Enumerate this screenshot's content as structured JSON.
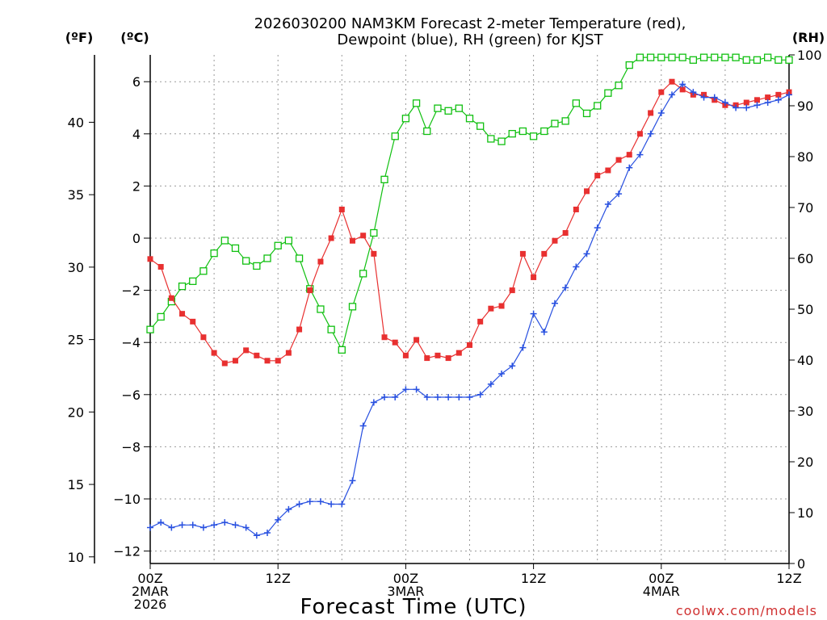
{
  "chart_data": {
    "type": "line",
    "title": [
      "2026030200 NAM3KM Forecast 2-meter Temperature (red),",
      "Dewpoint (blue), RH (green) for KJST"
    ],
    "xlabel": "Forecast Time (UTC)",
    "watermark": "coolwx.com/models",
    "left_unit_f": "(ºF)",
    "left_unit_c": "(ºC)",
    "right_unit": "(RH)",
    "grid": true,
    "x_range_hours": [
      0,
      60
    ],
    "x_ticks": [
      {
        "hour": 0,
        "lines": [
          "00Z",
          "2MAR",
          "2026"
        ]
      },
      {
        "hour": 12,
        "lines": [
          "12Z"
        ]
      },
      {
        "hour": 24,
        "lines": [
          "00Z",
          "3MAR"
        ]
      },
      {
        "hour": 36,
        "lines": [
          "12Z"
        ]
      },
      {
        "hour": 48,
        "lines": [
          "00Z",
          "4MAR"
        ]
      },
      {
        "hour": 60,
        "lines": [
          "12Z"
        ]
      }
    ],
    "ylim_c": [
      -12.5,
      7
    ],
    "y_ticks_c": [
      "6",
      "4",
      "2",
      "0",
      "−2",
      "−4",
      "−6",
      "−8",
      "−10",
      "−12"
    ],
    "y_ticks_f": [
      "10",
      "15",
      "20",
      "25",
      "30",
      "35",
      "40"
    ],
    "ylim_rh": [
      0,
      100
    ],
    "y_ticks_rh": [
      "0",
      "10",
      "20",
      "30",
      "40",
      "50",
      "60",
      "70",
      "80",
      "90",
      "100"
    ],
    "hours": [
      0,
      1,
      2,
      3,
      4,
      5,
      6,
      7,
      8,
      9,
      10,
      11,
      12,
      13,
      14,
      15,
      16,
      17,
      18,
      19,
      20,
      21,
      22,
      23,
      24,
      25,
      26,
      27,
      28,
      29,
      30,
      31,
      32,
      33,
      34,
      35,
      36,
      37,
      38,
      39,
      40,
      41,
      42,
      43,
      44,
      45,
      46,
      47,
      48,
      49,
      50,
      51,
      52,
      53,
      54,
      55,
      56,
      57,
      58,
      59,
      60
    ],
    "series": [
      {
        "name": "Temperature",
        "unit": "C",
        "color": "#e83030",
        "marker": "filled-square",
        "values": [
          -0.8,
          -1.1,
          -2.3,
          -2.9,
          -3.2,
          -3.8,
          -4.4,
          -4.8,
          -4.7,
          -4.3,
          -4.5,
          -4.7,
          -4.7,
          -4.4,
          -3.5,
          -2.0,
          -0.9,
          0.0,
          1.1,
          -0.1,
          0.1,
          -0.6,
          -3.8,
          -4.0,
          -4.5,
          -3.9,
          -4.6,
          -4.5,
          -4.6,
          -4.4,
          -4.1,
          -3.2,
          -2.7,
          -2.6,
          -2.0,
          -0.6,
          -1.5,
          -0.6,
          -0.1,
          0.2,
          1.1,
          1.8,
          2.4,
          2.6,
          3.0,
          3.2,
          4.0,
          4.8,
          5.6,
          6.0,
          5.7,
          5.5,
          5.5,
          5.3,
          5.1,
          5.1,
          5.2,
          5.3,
          5.4,
          5.5,
          5.6
        ]
      },
      {
        "name": "Dewpoint",
        "unit": "C",
        "color": "#2850e0",
        "marker": "plus",
        "values": [
          -11.1,
          -10.9,
          -11.1,
          -11.0,
          -11.0,
          -11.1,
          -11.0,
          -10.9,
          -11.0,
          -11.1,
          -11.4,
          -11.3,
          -10.8,
          -10.4,
          -10.2,
          -10.1,
          -10.1,
          -10.2,
          -10.2,
          -9.3,
          -7.2,
          -6.3,
          -6.1,
          -6.1,
          -5.8,
          -5.8,
          -6.1,
          -6.1,
          -6.1,
          -6.1,
          -6.1,
          -6.0,
          -5.6,
          -5.2,
          -4.9,
          -4.2,
          -2.9,
          -3.6,
          -2.5,
          -1.9,
          -1.1,
          -0.6,
          0.4,
          1.3,
          1.7,
          2.7,
          3.2,
          4.0,
          4.8,
          5.5,
          5.9,
          5.6,
          5.4,
          5.4,
          5.2,
          5.0,
          5.0,
          5.1,
          5.2,
          5.3,
          5.5
        ]
      },
      {
        "name": "RH",
        "unit": "%",
        "color": "#10c010",
        "marker": "open-square",
        "values": [
          46,
          48.5,
          51.5,
          54.5,
          55.5,
          57.5,
          61,
          63.5,
          62,
          59.5,
          58.5,
          60,
          62.5,
          63.5,
          60,
          54,
          50,
          46,
          42,
          50.5,
          57,
          65,
          75.5,
          84,
          87.5,
          90.5,
          85,
          89.5,
          89,
          89.5,
          87.5,
          86,
          83.5,
          83,
          84.5,
          85,
          84,
          85,
          86.5,
          87,
          90.5,
          88.5,
          90,
          92.5,
          94,
          98,
          99.5,
          99.5,
          99.5,
          99.5,
          99.5,
          99,
          99.5,
          99.5,
          99.5,
          99.5,
          99,
          99,
          99.5,
          99,
          99
        ]
      }
    ]
  }
}
